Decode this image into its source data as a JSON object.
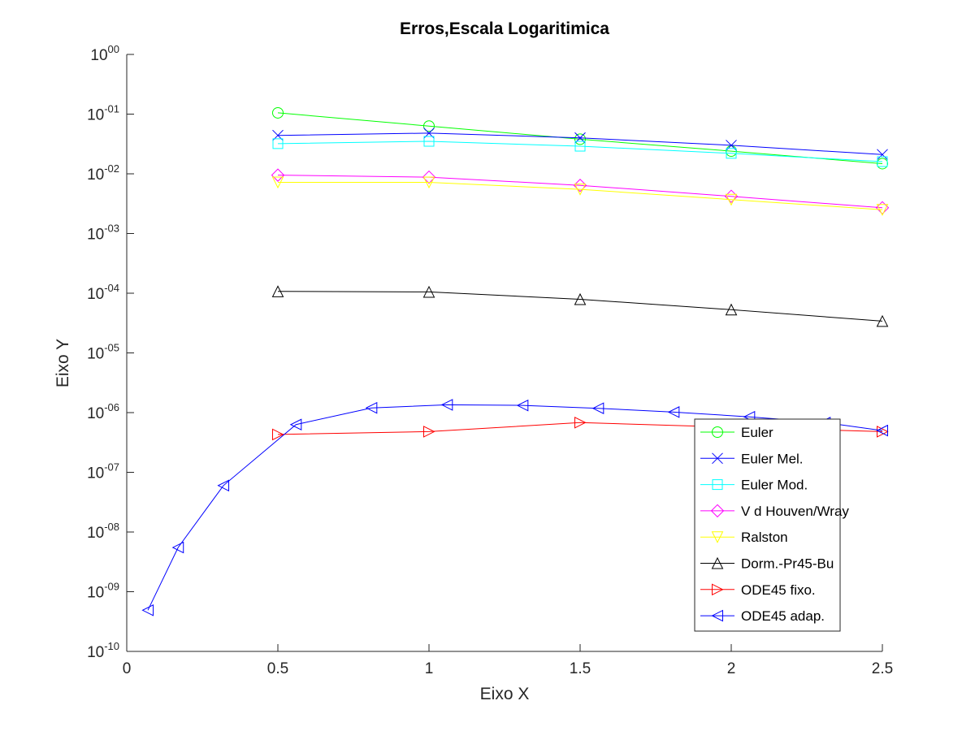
{
  "chart_data": {
    "type": "line",
    "title": "Erros,Escala Logaritimica",
    "xlabel": "Eixo X",
    "ylabel": "Eixo Y",
    "xlim": [
      0,
      2.5
    ],
    "ylim": [
      1e-10,
      1
    ],
    "yscale": "log",
    "grid": false,
    "legend_position": "bottom-right",
    "x_ticks": [
      {
        "value": 0,
        "label": "0"
      },
      {
        "value": 0.5,
        "label": "0.5"
      },
      {
        "value": 1,
        "label": "1"
      },
      {
        "value": 1.5,
        "label": "1.5"
      },
      {
        "value": 2,
        "label": "2"
      },
      {
        "value": 2.5,
        "label": "2.5"
      }
    ],
    "y_ticks": [
      {
        "value": 1,
        "base": "10",
        "exp": "00"
      },
      {
        "value": 0.1,
        "base": "10",
        "exp": "-01"
      },
      {
        "value": 0.01,
        "base": "10",
        "exp": "-02"
      },
      {
        "value": 0.001,
        "base": "10",
        "exp": "-03"
      },
      {
        "value": 0.0001,
        "base": "10",
        "exp": "-04"
      },
      {
        "value": 1e-05,
        "base": "10",
        "exp": "-05"
      },
      {
        "value": 1e-06,
        "base": "10",
        "exp": "-06"
      },
      {
        "value": 1e-07,
        "base": "10",
        "exp": "-07"
      },
      {
        "value": 1e-08,
        "base": "10",
        "exp": "-08"
      },
      {
        "value": 1e-09,
        "base": "10",
        "exp": "-09"
      },
      {
        "value": 1e-10,
        "base": "10",
        "exp": "-10"
      }
    ],
    "series": [
      {
        "name": "Euler",
        "color": "#00ff00",
        "marker": "circle",
        "x": [
          0.5,
          1,
          1.5,
          2,
          2.5
        ],
        "y": [
          0.105,
          0.063,
          0.038,
          0.024,
          0.0148
        ]
      },
      {
        "name": "Euler Mel.",
        "color": "#0000ff",
        "marker": "x",
        "x": [
          0.5,
          1,
          1.5,
          2,
          2.5
        ],
        "y": [
          0.044,
          0.048,
          0.04,
          0.03,
          0.021
        ]
      },
      {
        "name": "Euler Mod.",
        "color": "#00ffff",
        "marker": "square",
        "x": [
          0.5,
          1,
          1.5,
          2,
          2.5
        ],
        "y": [
          0.032,
          0.035,
          0.029,
          0.022,
          0.016
        ]
      },
      {
        "name": "V d Houven/Wray",
        "color": "#ff00ff",
        "marker": "diamond",
        "x": [
          0.5,
          1,
          1.5,
          2,
          2.5
        ],
        "y": [
          0.0095,
          0.0088,
          0.0064,
          0.0042,
          0.0027
        ]
      },
      {
        "name": "Ralston",
        "color": "#ffff00",
        "marker": "triangle-down",
        "x": [
          0.5,
          1,
          1.5,
          2,
          2.5
        ],
        "y": [
          0.0072,
          0.0072,
          0.0055,
          0.0037,
          0.0025
        ]
      },
      {
        "name": "Dorm.-Pr45-Bu",
        "color": "#000000",
        "marker": "triangle-up",
        "x": [
          0.5,
          1,
          1.5,
          2,
          2.5
        ],
        "y": [
          0.000107,
          0.000105,
          7.9e-05,
          5.3e-05,
          3.4e-05
        ]
      },
      {
        "name": "ODE45 fixo.",
        "color": "#ff0000",
        "marker": "triangle-right",
        "x": [
          0.5,
          1,
          1.5,
          2,
          2.5
        ],
        "y": [
          4.3e-07,
          4.8e-07,
          6.8e-07,
          5.7e-07,
          4.8e-07
        ]
      },
      {
        "name": "ODE45 adap.",
        "color": "#0000ff",
        "marker": "triangle-left",
        "x": [
          0.07,
          0.17,
          0.32,
          0.56,
          0.81,
          1.06,
          1.31,
          1.56,
          1.81,
          2.06,
          2.31,
          2.5
        ],
        "y": [
          4.9e-10,
          5.5e-09,
          6e-08,
          6.3e-07,
          1.2e-06,
          1.35e-06,
          1.32e-06,
          1.18e-06,
          1.02e-06,
          8.5e-07,
          6.8e-07,
          5e-07
        ]
      }
    ]
  }
}
